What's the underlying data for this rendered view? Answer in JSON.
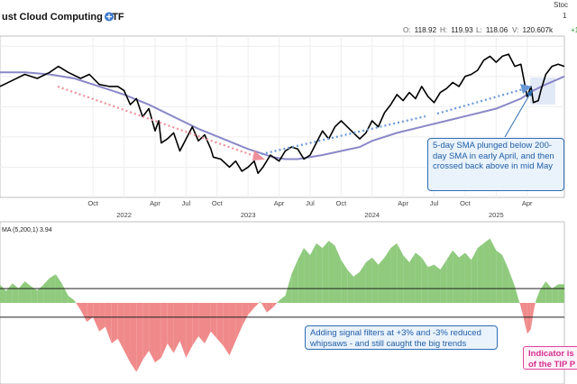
{
  "header": {
    "title": "ust Cloud Computing ETF",
    "add_icon": "plus-circle-icon",
    "brand_partial": "Stoc",
    "ohlc": [
      {
        "label": "O:",
        "value": "118.92"
      },
      {
        "label": "H:",
        "value": "119.93"
      },
      {
        "label": "L:",
        "value": "118.06"
      },
      {
        "label": "V:",
        "value": "120.607k"
      }
    ],
    "change_partial": "+1",
    "corner_digit": "1"
  },
  "chart_data": [
    {
      "type": "line",
      "title": "ust Cloud Computing ETF",
      "x_tick_months": [
        {
          "label": "Oct",
          "t": 0.75
        },
        {
          "label": "Apr",
          "t": 1.25
        },
        {
          "label": "Jul",
          "t": 1.5
        },
        {
          "label": "Oct",
          "t": 1.75
        },
        {
          "label": "Apr",
          "t": 2.25
        },
        {
          "label": "Jul",
          "t": 2.5
        },
        {
          "label": "Oct",
          "t": 2.75
        },
        {
          "label": "Apr",
          "t": 3.25
        },
        {
          "label": "Jul",
          "t": 3.5
        },
        {
          "label": "Oct",
          "t": 3.75
        },
        {
          "label": "Apr",
          "t": 4.25
        }
      ],
      "x_tick_years": [
        {
          "label": "2022",
          "t": 1.0
        },
        {
          "label": "2023",
          "t": 2.0
        },
        {
          "label": "2024",
          "t": 3.0
        },
        {
          "label": "2025",
          "t": 4.0
        }
      ],
      "x_domain": [
        0.0,
        4.55
      ],
      "ylim": [
        55,
        135
      ],
      "grid": true,
      "series": [
        {
          "name": "Price",
          "color": "#000000",
          "points": [
            [
              0.0,
              110
            ],
            [
              0.1,
              113
            ],
            [
              0.2,
              116
            ],
            [
              0.3,
              114
            ],
            [
              0.4,
              117
            ],
            [
              0.47,
              120
            ],
            [
              0.55,
              117
            ],
            [
              0.65,
              114
            ],
            [
              0.72,
              116
            ],
            [
              0.8,
              111
            ],
            [
              0.88,
              110
            ],
            [
              0.95,
              110
            ],
            [
              1.0,
              108
            ],
            [
              1.05,
              101
            ],
            [
              1.1,
              104
            ],
            [
              1.15,
              95
            ],
            [
              1.2,
              99
            ],
            [
              1.25,
              88
            ],
            [
              1.28,
              93
            ],
            [
              1.3,
              82
            ],
            [
              1.35,
              84
            ],
            [
              1.4,
              87
            ],
            [
              1.45,
              78
            ],
            [
              1.5,
              84
            ],
            [
              1.55,
              90
            ],
            [
              1.6,
              83
            ],
            [
              1.65,
              86
            ],
            [
              1.7,
              79
            ],
            [
              1.72,
              75
            ],
            [
              1.78,
              74
            ],
            [
              1.85,
              70
            ],
            [
              1.9,
              73
            ],
            [
              1.95,
              68
            ],
            [
              2.0,
              70
            ],
            [
              2.05,
              73
            ],
            [
              2.08,
              67
            ],
            [
              2.12,
              70
            ],
            [
              2.18,
              76
            ],
            [
              2.25,
              73
            ],
            [
              2.3,
              78
            ],
            [
              2.35,
              80
            ],
            [
              2.4,
              79
            ],
            [
              2.45,
              74
            ],
            [
              2.5,
              76
            ],
            [
              2.55,
              82
            ],
            [
              2.6,
              88
            ],
            [
              2.65,
              84
            ],
            [
              2.7,
              90
            ],
            [
              2.75,
              93
            ],
            [
              2.8,
              90
            ],
            [
              2.85,
              87
            ],
            [
              2.9,
              84
            ],
            [
              2.95,
              87
            ],
            [
              3.0,
              93
            ],
            [
              3.05,
              90
            ],
            [
              3.1,
              97
            ],
            [
              3.15,
              101
            ],
            [
              3.2,
              106
            ],
            [
              3.25,
              103
            ],
            [
              3.3,
              107
            ],
            [
              3.35,
              104
            ],
            [
              3.4,
              110
            ],
            [
              3.45,
              105
            ],
            [
              3.5,
              102
            ],
            [
              3.55,
              107
            ],
            [
              3.6,
              109
            ],
            [
              3.65,
              112
            ],
            [
              3.7,
              110
            ],
            [
              3.75,
              115
            ],
            [
              3.8,
              116
            ],
            [
              3.85,
              118
            ],
            [
              3.9,
              123
            ],
            [
              3.95,
              125
            ],
            [
              4.0,
              122
            ],
            [
              4.05,
              125
            ],
            [
              4.1,
              126
            ],
            [
              4.15,
              120
            ],
            [
              4.2,
              121
            ],
            [
              4.25,
              105
            ],
            [
              4.28,
              110
            ],
            [
              4.3,
              102
            ],
            [
              4.34,
              103
            ],
            [
              4.36,
              108
            ],
            [
              4.4,
              116
            ],
            [
              4.45,
              120
            ],
            [
              4.5,
              121
            ],
            [
              4.55,
              120
            ]
          ]
        },
        {
          "name": "200-day SMA",
          "color": "#8a88c8",
          "points": [
            [
              0.0,
              117
            ],
            [
              0.2,
              117
            ],
            [
              0.4,
              116
            ],
            [
              0.6,
              114
            ],
            [
              0.8,
              110
            ],
            [
              1.0,
              106
            ],
            [
              1.2,
              101
            ],
            [
              1.4,
              95
            ],
            [
              1.6,
              89
            ],
            [
              1.8,
              84
            ],
            [
              2.0,
              79
            ],
            [
              2.1,
              77
            ],
            [
              2.2,
              75
            ],
            [
              2.3,
              74
            ],
            [
              2.4,
              74
            ],
            [
              2.5,
              75
            ],
            [
              2.6,
              76
            ],
            [
              2.75,
              78
            ],
            [
              2.9,
              80
            ],
            [
              3.0,
              83
            ],
            [
              3.2,
              87
            ],
            [
              3.4,
              90
            ],
            [
              3.6,
              93
            ],
            [
              3.8,
              96
            ],
            [
              4.0,
              99
            ],
            [
              4.2,
              104
            ],
            [
              4.3,
              108
            ],
            [
              4.4,
              111
            ],
            [
              4.55,
              115
            ]
          ]
        }
      ],
      "annotations": [
        {
          "text": "5-day SMA plunged below 200-day SMA in early April, and then crossed back above in mid May",
          "style": "callout"
        }
      ]
    },
    {
      "type": "area",
      "title": "MA (5,200,1) 3.94",
      "indicator_label": "MA (5,200,1)",
      "indicator_value": "3.94",
      "ylim": [
        -17,
        17
      ],
      "threshold_upper": 3,
      "threshold_lower": -3,
      "positive_color": "#8fca7d",
      "negative_color": "#f08a8a",
      "series": [
        {
          "name": "PPO (5,200,1)",
          "points": [
            [
              0.0,
              3.8
            ],
            [
              0.05,
              2.5
            ],
            [
              0.1,
              4.1
            ],
            [
              0.15,
              3.0
            ],
            [
              0.2,
              4.5
            ],
            [
              0.25,
              3.5
            ],
            [
              0.3,
              2.6
            ],
            [
              0.35,
              3.8
            ],
            [
              0.4,
              5.2
            ],
            [
              0.45,
              6.0
            ],
            [
              0.5,
              4.0
            ],
            [
              0.55,
              1.5
            ],
            [
              0.6,
              0.5
            ],
            [
              0.65,
              -1.5
            ],
            [
              0.7,
              -4.0
            ],
            [
              0.75,
              -3.0
            ],
            [
              0.8,
              -6.0
            ],
            [
              0.85,
              -5.0
            ],
            [
              0.9,
              -8.5
            ],
            [
              0.95,
              -7.5
            ],
            [
              1.0,
              -10.0
            ],
            [
              1.05,
              -12.5
            ],
            [
              1.1,
              -14.5
            ],
            [
              1.15,
              -12.0
            ],
            [
              1.2,
              -10.0
            ],
            [
              1.25,
              -12.5
            ],
            [
              1.3,
              -11.5
            ],
            [
              1.35,
              -8.5
            ],
            [
              1.4,
              -10.5
            ],
            [
              1.45,
              -8.0
            ],
            [
              1.5,
              -11.5
            ],
            [
              1.55,
              -9.0
            ],
            [
              1.6,
              -7.0
            ],
            [
              1.65,
              -8.5
            ],
            [
              1.7,
              -6.0
            ],
            [
              1.75,
              -7.5
            ],
            [
              1.8,
              -9.0
            ],
            [
              1.85,
              -11.0
            ],
            [
              1.9,
              -8.0
            ],
            [
              1.95,
              -5.0
            ],
            [
              2.0,
              -2.5
            ],
            [
              2.05,
              -1.0
            ],
            [
              2.1,
              0.3
            ],
            [
              2.15,
              -2.0
            ],
            [
              2.2,
              -1.0
            ],
            [
              2.25,
              0.5
            ],
            [
              2.3,
              1.5
            ],
            [
              2.35,
              6.0
            ],
            [
              2.4,
              9.0
            ],
            [
              2.45,
              11.5
            ],
            [
              2.5,
              10.0
            ],
            [
              2.55,
              12.5
            ],
            [
              2.6,
              11.5
            ],
            [
              2.65,
              13.0
            ],
            [
              2.7,
              12.0
            ],
            [
              2.75,
              9.0
            ],
            [
              2.8,
              7.0
            ],
            [
              2.85,
              5.5
            ],
            [
              2.9,
              6.5
            ],
            [
              2.95,
              8.5
            ],
            [
              3.0,
              9.5
            ],
            [
              3.05,
              8.0
            ],
            [
              3.1,
              9.5
            ],
            [
              3.15,
              11.5
            ],
            [
              3.2,
              12.5
            ],
            [
              3.25,
              10.0
            ],
            [
              3.3,
              8.5
            ],
            [
              3.35,
              10.5
            ],
            [
              3.4,
              9.5
            ],
            [
              3.45,
              7.5
            ],
            [
              3.5,
              8.0
            ],
            [
              3.55,
              7.0
            ],
            [
              3.6,
              9.0
            ],
            [
              3.65,
              11.0
            ],
            [
              3.7,
              9.5
            ],
            [
              3.75,
              10.5
            ],
            [
              3.8,
              9.0
            ],
            [
              3.85,
              11.5
            ],
            [
              3.9,
              12.5
            ],
            [
              3.95,
              13.5
            ],
            [
              4.0,
              11.0
            ],
            [
              4.05,
              10.0
            ],
            [
              4.1,
              7.0
            ],
            [
              4.15,
              3.5
            ],
            [
              4.2,
              -1.0
            ],
            [
              4.22,
              -3.0
            ],
            [
              4.25,
              -6.5
            ],
            [
              4.28,
              -5.5
            ],
            [
              4.3,
              -2.0
            ],
            [
              4.32,
              0.5
            ],
            [
              4.35,
              2.5
            ],
            [
              4.4,
              4.5
            ],
            [
              4.45,
              3.0
            ],
            [
              4.5,
              3.9
            ],
            [
              4.55,
              3.9
            ]
          ]
        }
      ],
      "annotations": [
        {
          "text": "Adding signal filters at +3% and -3% reduced whipsaws - and still caught the big trends",
          "style": "callout"
        },
        {
          "text": "Indicator is of the TIP P",
          "style": "callout-pink"
        }
      ]
    }
  ],
  "callouts": {
    "sma_cross": "5-day SMA plunged below 200-day SMA in early April, and then crossed back above in mid May",
    "filters": "Adding signal filters at +3% and -3% reduced whipsaws - and still caught the big trends",
    "indicator_1": "Indicator is",
    "indicator_2": "of the TIP P"
  }
}
